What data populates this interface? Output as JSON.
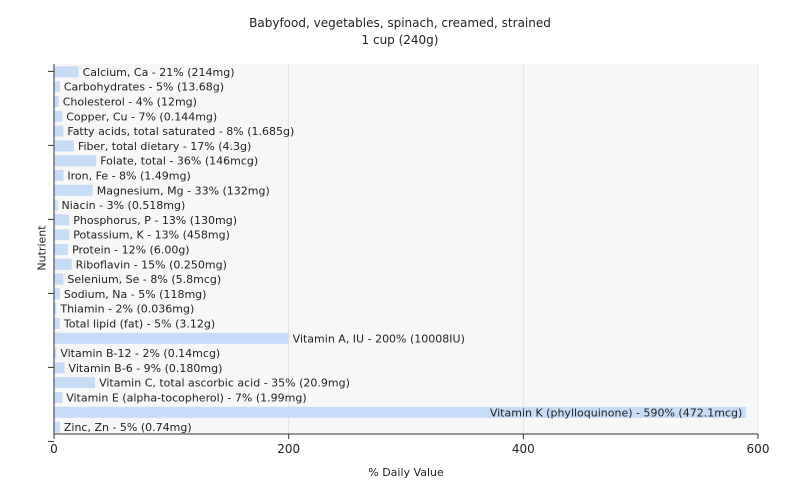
{
  "chart_data": {
    "type": "bar",
    "orientation": "horizontal",
    "title": "Babyfood, vegetables, spinach, creamed, strained",
    "subtitle": "1 cup (240g)",
    "xlabel": "% Daily Value",
    "ylabel": "Nutrient",
    "xlim": [
      0,
      600
    ],
    "xticks": [
      0,
      200,
      400,
      600
    ],
    "grid": true,
    "bar_color": "#c6dcf7",
    "categories": [
      "Calcium, Ca",
      "Carbohydrates",
      "Cholesterol",
      "Copper, Cu",
      "Fatty acids, total saturated",
      "Fiber, total dietary",
      "Folate, total",
      "Iron, Fe",
      "Magnesium, Mg",
      "Niacin",
      "Phosphorus, P",
      "Potassium, K",
      "Protein",
      "Riboflavin",
      "Selenium, Se",
      "Sodium, Na",
      "Thiamin",
      "Total lipid (fat)",
      "Vitamin A, IU",
      "Vitamin B-12",
      "Vitamin B-6",
      "Vitamin C, total ascorbic acid",
      "Vitamin E (alpha-tocopherol)",
      "Vitamin K (phylloquinone)",
      "Zinc, Zn"
    ],
    "values": [
      21,
      5,
      4,
      7,
      8,
      17,
      36,
      8,
      33,
      3,
      13,
      13,
      12,
      15,
      8,
      5,
      2,
      5,
      200,
      2,
      9,
      35,
      7,
      590,
      5
    ],
    "labels": [
      "Calcium, Ca - 21% (214mg)",
      "Carbohydrates - 5% (13.68g)",
      "Cholesterol - 4% (12mg)",
      "Copper, Cu - 7% (0.144mg)",
      "Fatty acids, total saturated - 8% (1.685g)",
      "Fiber, total dietary - 17% (4.3g)",
      "Folate, total - 36% (146mcg)",
      "Iron, Fe - 8% (1.49mg)",
      "Magnesium, Mg - 33% (132mg)",
      "Niacin - 3% (0.518mg)",
      "Phosphorus, P - 13% (130mg)",
      "Potassium, K - 13% (458mg)",
      "Protein - 12% (6.00g)",
      "Riboflavin - 15% (0.250mg)",
      "Selenium, Se - 8% (5.8mcg)",
      "Sodium, Na - 5% (118mg)",
      "Thiamin - 2% (0.036mg)",
      "Total lipid (fat) - 5% (3.12g)",
      "Vitamin A, IU - 200% (10008IU)",
      "Vitamin B-12 - 2% (0.14mcg)",
      "Vitamin B-6 - 9% (0.180mg)",
      "Vitamin C, total ascorbic acid - 35% (20.9mg)",
      "Vitamin E (alpha-tocopherol) - 7% (1.99mg)",
      "Vitamin K (phylloquinone) - 590% (472.1mcg)",
      "Zinc, Zn - 5% (0.74mg)"
    ]
  }
}
